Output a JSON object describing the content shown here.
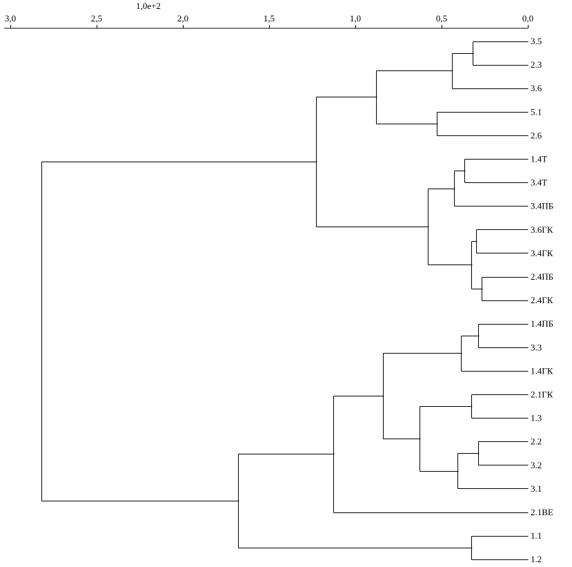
{
  "chart_data": {
    "type": "dendrogram",
    "orientation": "leaves-right",
    "axis": {
      "scale_label": "1,0e+2",
      "range": [
        3.0,
        0.0
      ],
      "ticks": [
        {
          "value": 3.0,
          "label": "3,0"
        },
        {
          "value": 2.5,
          "label": "2,5"
        },
        {
          "value": 2.0,
          "label": "2,0"
        },
        {
          "value": 1.5,
          "label": "1,5"
        },
        {
          "value": 1.0,
          "label": "1,0"
        },
        {
          "value": 0.5,
          "label": "0,5"
        },
        {
          "value": 0.0,
          "label": "0,0"
        }
      ]
    },
    "leaves": [
      "3.5",
      "2.3",
      "3.6",
      "5.1",
      "2.6",
      "1.4Т",
      "3.4Т",
      "3.4ПБ",
      "3.6ГК",
      "3.4ГК",
      "2.4ПБ",
      "2.4ГК",
      "1.4ПБ",
      "3.3",
      "1.4ГК",
      "2.1ГК",
      "1.3",
      "2.2",
      "3.2",
      "3.1",
      "2.1ВЕ",
      "1.1",
      "1.2"
    ],
    "merges": [
      {
        "id": "m1",
        "height": 0.32,
        "children": [
          "3.5",
          "2.3"
        ]
      },
      {
        "id": "m2",
        "height": 0.44,
        "children": [
          "m1",
          "3.6"
        ]
      },
      {
        "id": "m3",
        "height": 0.53,
        "children": [
          "5.1",
          "2.6"
        ]
      },
      {
        "id": "m4",
        "height": 0.88,
        "children": [
          "m2",
          "m3"
        ]
      },
      {
        "id": "m5",
        "height": 0.37,
        "children": [
          "1.4Т",
          "3.4Т"
        ]
      },
      {
        "id": "m6",
        "height": 0.43,
        "children": [
          "m5",
          "3.4ПБ"
        ]
      },
      {
        "id": "m7",
        "height": 0.3,
        "children": [
          "3.6ГК",
          "3.4ГК"
        ]
      },
      {
        "id": "m8",
        "height": 0.27,
        "children": [
          "2.4ПБ",
          "2.4ГК"
        ]
      },
      {
        "id": "m9",
        "height": 0.33,
        "children": [
          "m7",
          "m8"
        ]
      },
      {
        "id": "m10",
        "height": 0.58,
        "children": [
          "m6",
          "m9"
        ]
      },
      {
        "id": "m11",
        "height": 1.23,
        "children": [
          "m4",
          "m10"
        ]
      },
      {
        "id": "m12",
        "height": 0.29,
        "children": [
          "1.4ПБ",
          "3.3"
        ]
      },
      {
        "id": "m13",
        "height": 0.39,
        "children": [
          "m12",
          "1.4ГК"
        ]
      },
      {
        "id": "m14",
        "height": 0.33,
        "children": [
          "2.1ГК",
          "1.3"
        ]
      },
      {
        "id": "m15",
        "height": 0.29,
        "children": [
          "2.2",
          "3.2"
        ]
      },
      {
        "id": "m16",
        "height": 0.41,
        "children": [
          "m15",
          "3.1"
        ]
      },
      {
        "id": "m17",
        "height": 0.63,
        "children": [
          "m14",
          "m16"
        ]
      },
      {
        "id": "m18",
        "height": 0.84,
        "children": [
          "m13",
          "m17"
        ]
      },
      {
        "id": "m19",
        "height": 1.13,
        "children": [
          "m18",
          "2.1ВЕ"
        ]
      },
      {
        "id": "m20",
        "height": 0.33,
        "children": [
          "1.1",
          "1.2"
        ]
      },
      {
        "id": "m21",
        "height": 1.68,
        "children": [
          "m19",
          "m20"
        ]
      },
      {
        "id": "m22",
        "height": 2.82,
        "children": [
          "m11",
          "m21"
        ]
      }
    ]
  }
}
